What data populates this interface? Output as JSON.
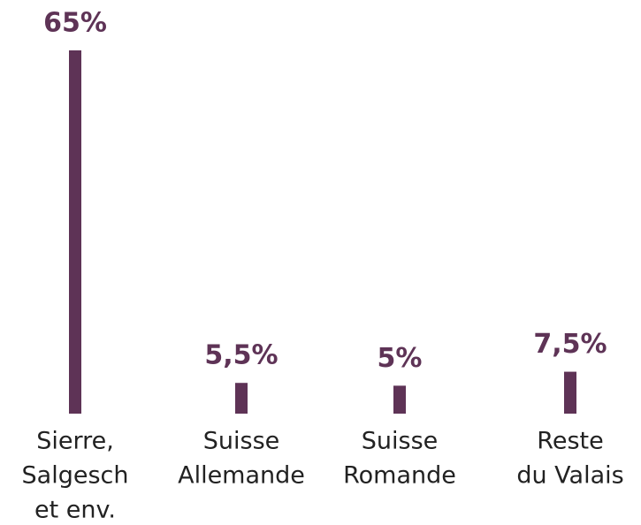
{
  "chart_data": {
    "type": "bar",
    "categories": [
      [
        "Sierre,",
        "Salgesch",
        "et env."
      ],
      [
        "Suisse",
        "Allemande"
      ],
      [
        "Suisse",
        "Romande"
      ],
      [
        "Reste",
        "du Valais"
      ]
    ],
    "values": [
      65,
      5.5,
      5,
      7.5
    ],
    "value_labels": [
      "65%",
      "5,5%",
      "5%",
      "7,5%"
    ],
    "color": "#5e3356"
  }
}
